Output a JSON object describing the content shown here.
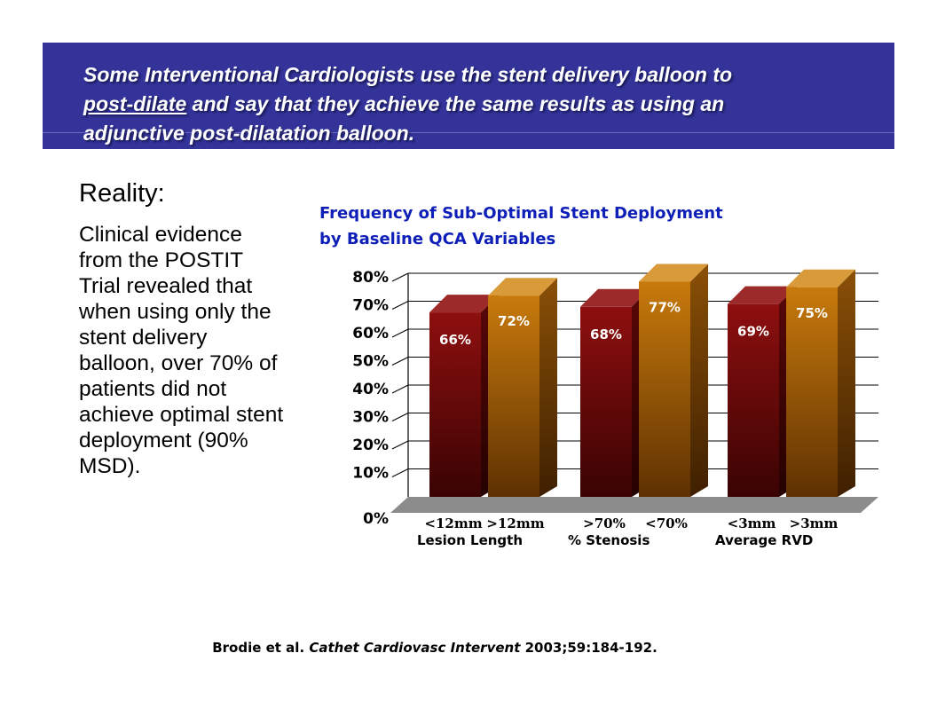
{
  "banner": {
    "line1": "Some Interventional Cardiologists use the stent delivery balloon to",
    "underlined": "post-dilate",
    "line2_rest": " and say that they achieve the same results as using an",
    "line3": "adjunctive post-dilatation balloon."
  },
  "reality": {
    "title": "Reality:",
    "body": "Clinical evidence from the POSTIT Trial revealed that when using only the stent delivery balloon, over 70% of patients did not achieve optimal stent deployment (90% MSD)."
  },
  "chart_data": {
    "type": "bar",
    "title_line1": "Frequency of Sub-Optimal Stent Deployment",
    "title_line2": "by Baseline QCA Variables",
    "ylim": [
      0,
      80
    ],
    "yticks": [
      "0%",
      "10%",
      "20%",
      "30%",
      "40%",
      "50%",
      "60%",
      "70%",
      "80%"
    ],
    "groups": [
      {
        "name": "Lesion Length",
        "bars": [
          {
            "label": "<12mm",
            "value": 66,
            "value_label": "66%",
            "color": "#7a0d0d"
          },
          {
            "label": ">12mm",
            "value": 72,
            "value_label": "72%",
            "color": "#b86a0a"
          }
        ]
      },
      {
        "name": "% Stenosis",
        "bars": [
          {
            "label": ">70%",
            "value": 68,
            "value_label": "68%",
            "color": "#7a0d0d"
          },
          {
            "label": "<70%",
            "value": 77,
            "value_label": "77%",
            "color": "#b86a0a"
          }
        ]
      },
      {
        "name": "Average RVD",
        "bars": [
          {
            "label": "<3mm",
            "value": 69,
            "value_label": "69%",
            "color": "#7a0d0d"
          },
          {
            "label": ">3mm",
            "value": 75,
            "value_label": "75%",
            "color": "#b86a0a"
          }
        ]
      }
    ]
  },
  "citation": {
    "authors": "Brodie et al. ",
    "journal": "Cathet Cardiovasc Intervent",
    "details": " 2003;59:184-192."
  }
}
